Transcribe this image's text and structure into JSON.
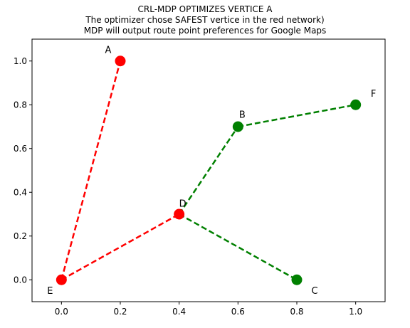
{
  "chart_data": {
    "type": "scatter",
    "title_lines": [
      "CRL-MDP OPTIMIZES VERTICE  A",
      "The optimizer chose SAFEST vertice in the red network)",
      "MDP will output route point preferences for Google Maps"
    ],
    "xlabel": "",
    "ylabel": "",
    "xlim": [
      -0.1,
      1.1
    ],
    "ylim": [
      -0.1,
      1.1
    ],
    "xticks": [
      0.0,
      0.2,
      0.4,
      0.6,
      0.8,
      1.0
    ],
    "yticks": [
      0.0,
      0.2,
      0.4,
      0.6,
      0.8,
      1.0
    ],
    "xtick_labels": [
      "0.0",
      "0.2",
      "0.4",
      "0.6",
      "0.8",
      "1.0"
    ],
    "ytick_labels": [
      "0.0",
      "0.2",
      "0.4",
      "0.6",
      "0.8",
      "1.0"
    ],
    "grid": false,
    "nodes": [
      {
        "id": "A",
        "label": "A",
        "x": 0.2,
        "y": 1.0,
        "color": "#ff0000"
      },
      {
        "id": "B",
        "label": "B",
        "x": 0.6,
        "y": 0.7,
        "color": "#008000"
      },
      {
        "id": "C",
        "label": "C",
        "x": 0.8,
        "y": 0.0,
        "color": "#008000"
      },
      {
        "id": "D",
        "label": "D",
        "x": 0.4,
        "y": 0.3,
        "color": "#ff0000"
      },
      {
        "id": "E",
        "label": "E",
        "x": 0.0,
        "y": 0.0,
        "color": "#ff0000"
      },
      {
        "id": "F",
        "label": "F",
        "x": 1.0,
        "y": 0.8,
        "color": "#008000"
      }
    ],
    "edges": [
      {
        "from": "E",
        "to": "A",
        "color": "#ff0000",
        "style": "dashed"
      },
      {
        "from": "E",
        "to": "D",
        "color": "#ff0000",
        "style": "dashed"
      },
      {
        "from": "D",
        "to": "B",
        "color": "#008000",
        "style": "dashed"
      },
      {
        "from": "B",
        "to": "F",
        "color": "#008000",
        "style": "dashed"
      },
      {
        "from": "D",
        "to": "C",
        "color": "#008000",
        "style": "dashed"
      }
    ]
  }
}
